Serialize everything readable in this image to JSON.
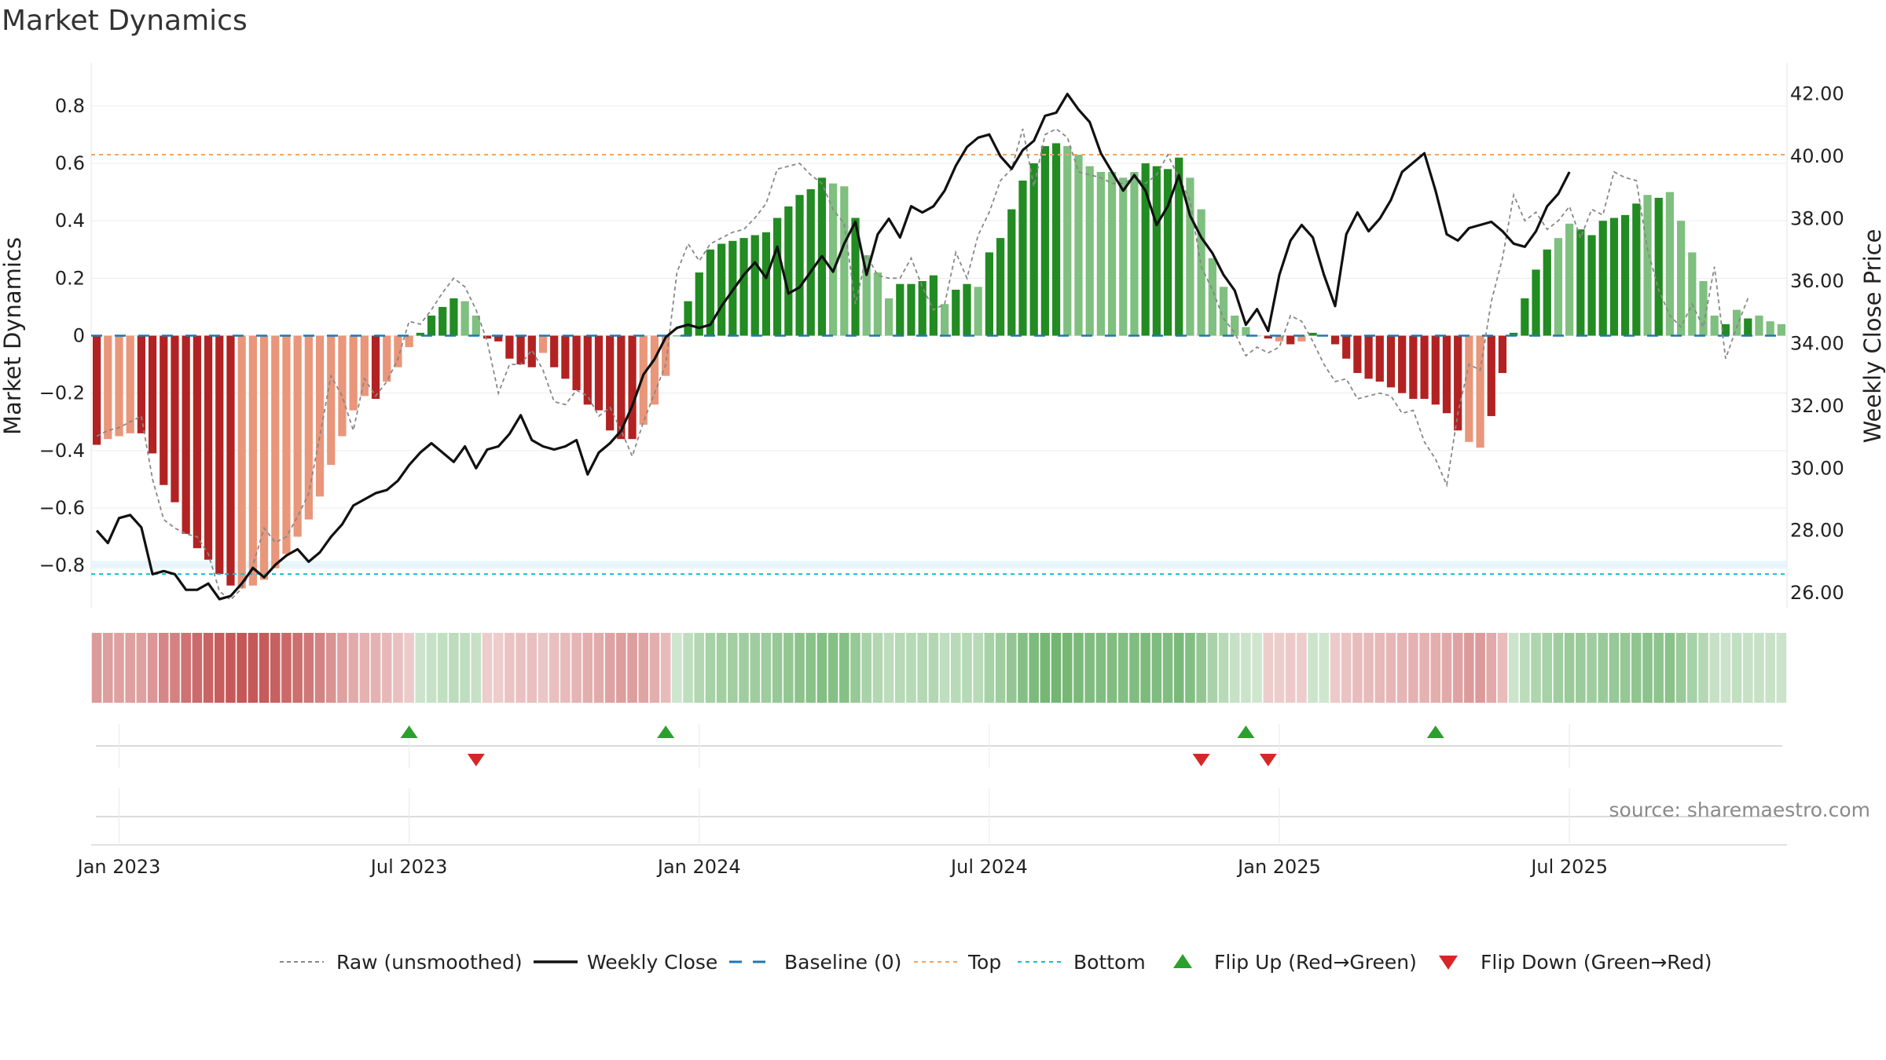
{
  "title": "Market Dynamics",
  "source_note": "source: sharemaestro.com",
  "colors": {
    "strong_green": "#228B22",
    "light_green": "#7FBF7F",
    "strong_red": "#B22222",
    "light_red": "#E9967A",
    "close_line": "#111111",
    "raw_line": "#888888",
    "baseline": "#1f77b4",
    "top_line": "#F4A460",
    "bottom_line": "#17becf",
    "flip_up": "#2ca02c",
    "flip_down": "#d62728"
  },
  "chart_data": {
    "type": "bar",
    "title": "Market Dynamics",
    "ylabel_left": "Market Dynamics",
    "ylabel_right": "Weekly Close Price",
    "ylim_left": [
      -0.95,
      0.95
    ],
    "ylim_right": [
      25.5,
      43.0
    ],
    "yticks_left": [
      "0.8",
      "0.6",
      "0.4",
      "0.2",
      "0",
      "−0.2",
      "−0.4",
      "−0.6",
      "−0.8"
    ],
    "yticks_left_values": [
      0.8,
      0.6,
      0.4,
      0.2,
      0,
      -0.2,
      -0.4,
      -0.6,
      -0.8
    ],
    "yticks_right": [
      "42.00",
      "40.00",
      "38.00",
      "36.00",
      "34.00",
      "32.00",
      "30.00",
      "28.00",
      "26.00"
    ],
    "yticks_right_values": [
      42,
      40,
      38,
      36,
      34,
      32,
      30,
      28,
      26
    ],
    "xticks": [
      "Jan 2023",
      "Jul 2023",
      "Jan 2024",
      "Jul 2024",
      "Jan 2025",
      "Jul 2025"
    ],
    "xticks_weeks": [
      2,
      28,
      54,
      80,
      106,
      132
    ],
    "top_level": 0.63,
    "bottom_level": -0.83,
    "baseline": 0,
    "grid": true,
    "legend_position": "bottom-center",
    "x_start": "2022-12-26",
    "x_step": "weekly",
    "momentum": [
      -0.38,
      -0.36,
      -0.35,
      -0.34,
      -0.34,
      -0.41,
      -0.52,
      -0.58,
      -0.69,
      -0.74,
      -0.78,
      -0.83,
      -0.87,
      -0.88,
      -0.87,
      -0.85,
      -0.81,
      -0.76,
      -0.7,
      -0.64,
      -0.56,
      -0.45,
      -0.35,
      -0.26,
      -0.21,
      -0.22,
      -0.16,
      -0.11,
      -0.04,
      0.01,
      0.07,
      0.1,
      0.13,
      0.12,
      0.07,
      -0.01,
      -0.02,
      -0.08,
      -0.1,
      -0.11,
      -0.06,
      -0.11,
      -0.15,
      -0.19,
      -0.24,
      -0.26,
      -0.33,
      -0.36,
      -0.36,
      -0.31,
      -0.24,
      -0.14,
      0.0,
      0.12,
      0.22,
      0.3,
      0.32,
      0.33,
      0.34,
      0.35,
      0.36,
      0.41,
      0.45,
      0.49,
      0.51,
      0.55,
      0.53,
      0.52,
      0.41,
      0.28,
      0.22,
      0.13,
      0.18,
      0.18,
      0.19,
      0.21,
      0.11,
      0.16,
      0.18,
      0.17,
      0.29,
      0.34,
      0.44,
      0.54,
      0.6,
      0.66,
      0.67,
      0.66,
      0.63,
      0.59,
      0.57,
      0.57,
      0.55,
      0.57,
      0.6,
      0.59,
      0.58,
      0.62,
      0.55,
      0.44,
      0.27,
      0.17,
      0.07,
      0.03,
      0.0,
      -0.01,
      -0.02,
      -0.03,
      -0.02,
      0.01,
      0.0,
      -0.03,
      -0.08,
      -0.13,
      -0.15,
      -0.16,
      -0.18,
      -0.2,
      -0.22,
      -0.22,
      -0.24,
      -0.27,
      -0.33,
      -0.37,
      -0.39,
      -0.28,
      -0.13,
      0.01,
      0.13,
      0.23,
      0.3,
      0.34,
      0.39,
      0.37,
      0.35,
      0.4,
      0.41,
      0.42,
      0.46,
      0.49,
      0.48,
      0.5,
      0.4,
      0.29,
      0.19,
      0.07,
      0.04,
      0.09,
      0.06,
      0.07,
      0.05,
      0.04
    ],
    "bar_shade": [
      "S",
      "L",
      "L",
      "L",
      "S",
      "S",
      "S",
      "S",
      "S",
      "S",
      "S",
      "S",
      "S",
      "L",
      "L",
      "L",
      "L",
      "L",
      "L",
      "L",
      "L",
      "L",
      "L",
      "L",
      "L",
      "S",
      "L",
      "L",
      "L",
      "S",
      "S",
      "S",
      "S",
      "L",
      "L",
      "S",
      "S",
      "S",
      "S",
      "S",
      "L",
      "S",
      "S",
      "S",
      "S",
      "S",
      "S",
      "S",
      "S",
      "L",
      "L",
      "L",
      "S",
      "S",
      "S",
      "S",
      "S",
      "S",
      "S",
      "S",
      "S",
      "S",
      "S",
      "S",
      "S",
      "S",
      "L",
      "L",
      "S",
      "L",
      "L",
      "L",
      "S",
      "S",
      "S",
      "S",
      "L",
      "S",
      "S",
      "L",
      "S",
      "S",
      "S",
      "S",
      "S",
      "S",
      "S",
      "L",
      "L",
      "L",
      "L",
      "L",
      "L",
      "L",
      "S",
      "S",
      "S",
      "S",
      "L",
      "L",
      "L",
      "L",
      "L",
      "L",
      "L",
      "S",
      "L",
      "S",
      "L",
      "S",
      "S",
      "S",
      "S",
      "S",
      "S",
      "S",
      "S",
      "S",
      "S",
      "S",
      "S",
      "S",
      "S",
      "L",
      "L",
      "S",
      "S",
      "S",
      "S",
      "S",
      "S",
      "L",
      "L",
      "S",
      "S",
      "S",
      "S",
      "S",
      "S",
      "L",
      "S",
      "L",
      "L",
      "L",
      "L",
      "L",
      "S",
      "L",
      "S",
      "L",
      "L"
    ],
    "raw": [
      -0.35,
      -0.33,
      -0.32,
      -0.3,
      -0.28,
      -0.5,
      -0.64,
      -0.67,
      -0.69,
      -0.7,
      -0.76,
      -0.89,
      -0.92,
      -0.88,
      -0.8,
      -0.67,
      -0.72,
      -0.7,
      -0.63,
      -0.55,
      -0.35,
      -0.14,
      -0.21,
      -0.33,
      -0.15,
      -0.21,
      -0.16,
      -0.08,
      0.05,
      0.04,
      0.09,
      0.15,
      0.2,
      0.17,
      0.09,
      -0.02,
      -0.2,
      -0.1,
      -0.1,
      -0.05,
      -0.12,
      -0.23,
      -0.24,
      -0.19,
      -0.21,
      -0.28,
      -0.25,
      -0.33,
      -0.42,
      -0.3,
      -0.2,
      -0.1,
      0.22,
      0.32,
      0.26,
      0.32,
      0.34,
      0.36,
      0.37,
      0.41,
      0.46,
      0.58,
      0.59,
      0.6,
      0.56,
      0.53,
      0.44,
      0.39,
      0.11,
      0.28,
      0.21,
      0.2,
      0.2,
      0.27,
      0.17,
      0.09,
      0.11,
      0.29,
      0.2,
      0.35,
      0.43,
      0.54,
      0.58,
      0.72,
      0.52,
      0.7,
      0.72,
      0.69,
      0.57,
      0.56,
      0.55,
      0.53,
      0.53,
      0.55,
      0.53,
      0.56,
      0.63,
      0.55,
      0.47,
      0.24,
      0.16,
      0.06,
      0.01,
      -0.07,
      -0.04,
      -0.06,
      -0.04,
      0.07,
      0.05,
      -0.02,
      -0.1,
      -0.16,
      -0.15,
      -0.22,
      -0.21,
      -0.2,
      -0.21,
      -0.27,
      -0.26,
      -0.37,
      -0.43,
      -0.52,
      -0.27,
      -0.1,
      -0.12,
      0.12,
      0.27,
      0.49,
      0.4,
      0.43,
      0.37,
      0.4,
      0.45,
      0.34,
      0.44,
      0.42,
      0.57,
      0.55,
      0.54,
      0.3,
      0.16,
      0.07,
      0.03,
      0.11,
      0.03,
      0.24,
      -0.08,
      0.03,
      0.13
    ],
    "close": [
      28.0,
      27.6,
      28.4,
      28.5,
      28.1,
      26.6,
      26.7,
      26.6,
      26.1,
      26.1,
      26.3,
      25.8,
      25.9,
      26.3,
      26.8,
      26.5,
      26.9,
      27.2,
      27.4,
      27.0,
      27.3,
      27.8,
      28.2,
      28.8,
      29.0,
      29.2,
      29.3,
      29.6,
      30.1,
      30.5,
      30.8,
      30.5,
      30.2,
      30.7,
      30.0,
      30.6,
      30.7,
      31.1,
      31.7,
      30.9,
      30.7,
      30.6,
      30.7,
      30.9,
      29.8,
      30.5,
      30.8,
      31.2,
      32.0,
      33.0,
      33.5,
      34.2,
      34.5,
      34.6,
      34.5,
      34.6,
      35.2,
      35.7,
      36.2,
      36.6,
      36.1,
      37.1,
      35.6,
      35.8,
      36.3,
      36.8,
      36.3,
      37.2,
      37.9,
      36.2,
      37.5,
      38.0,
      37.4,
      38.4,
      38.2,
      38.4,
      38.9,
      39.7,
      40.3,
      40.6,
      40.7,
      40.0,
      39.6,
      40.2,
      40.5,
      41.3,
      41.4,
      42.0,
      41.5,
      41.1,
      40.1,
      39.5,
      38.9,
      39.4,
      38.9,
      37.8,
      38.4,
      39.4,
      38.1,
      37.4,
      36.9,
      36.2,
      35.7,
      34.6,
      35.1,
      34.4,
      36.2,
      37.3,
      37.8,
      37.4,
      36.2,
      35.2,
      37.5,
      38.2,
      37.6,
      38.0,
      38.6,
      39.5,
      39.8,
      40.1,
      38.9,
      37.5,
      37.3,
      37.7,
      37.8,
      37.9,
      37.6,
      37.2,
      37.1,
      37.6,
      38.4,
      38.8,
      39.5
    ],
    "flip_up_weeks": [
      28,
      51,
      103,
      120
    ],
    "flip_down_weeks": [
      34,
      99,
      105
    ]
  },
  "legend": [
    {
      "key": "raw",
      "label": "Raw (unsmoothed)"
    },
    {
      "key": "close",
      "label": "Weekly Close"
    },
    {
      "key": "baseline",
      "label": "Baseline (0)"
    },
    {
      "key": "top",
      "label": "Top"
    },
    {
      "key": "bottom",
      "label": "Bottom"
    },
    {
      "key": "flipup",
      "label": "Flip Up (Red→Green)"
    },
    {
      "key": "flipdown",
      "label": "Flip Down (Green→Red)"
    }
  ]
}
